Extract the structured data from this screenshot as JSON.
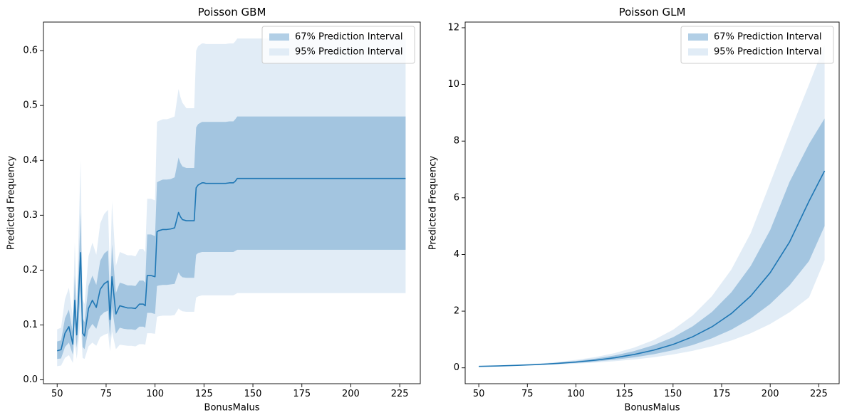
{
  "colors": {
    "line": "#1f77b4",
    "band67": "#a3c5e0",
    "band95": "#e1ecf6",
    "legend67": "#b2cfe6",
    "legend95": "#e1ecf6"
  },
  "chart_data": [
    {
      "type": "line",
      "title": "Poisson GBM",
      "xlabel": "BonusMalus",
      "ylabel": "Predicted Frequency",
      "xlim": [
        43,
        235.5
      ],
      "ylim": [
        -0.007,
        0.652
      ],
      "xticks": [
        50,
        75,
        100,
        125,
        150,
        175,
        200,
        225
      ],
      "xtick_labels": [
        "50",
        "75",
        "100",
        "125",
        "150",
        "175",
        "200",
        "225"
      ],
      "yticks": [
        0.0,
        0.1,
        0.2,
        0.3,
        0.4,
        0.5,
        0.6
      ],
      "ytick_labels": [
        "0.0",
        "0.1",
        "0.2",
        "0.3",
        "0.4",
        "0.5",
        "0.6"
      ],
      "legend_position": "upper right",
      "legend": [
        "67% Prediction Interval",
        "95% Prediction Interval"
      ],
      "x": [
        50,
        52,
        54,
        56,
        58,
        59,
        60,
        62,
        63,
        64,
        66,
        68,
        70,
        72,
        74,
        76,
        77,
        78,
        80,
        82,
        84,
        86,
        88,
        90,
        92,
        94,
        95,
        96,
        98,
        100,
        101,
        102,
        104,
        106,
        108,
        110,
        112,
        113,
        114,
        116,
        118,
        120,
        121,
        122,
        124,
        125,
        126,
        128,
        130,
        132,
        134,
        136,
        138,
        140,
        141,
        142,
        144,
        146,
        150,
        160,
        170,
        180,
        190,
        200,
        210,
        220,
        228
      ],
      "series": [
        {
          "role": "prediction",
          "values": [
            0.053,
            0.055,
            0.085,
            0.097,
            0.065,
            0.145,
            0.082,
            0.232,
            0.085,
            0.08,
            0.13,
            0.145,
            0.132,
            0.165,
            0.175,
            0.18,
            0.11,
            0.188,
            0.12,
            0.135,
            0.133,
            0.131,
            0.131,
            0.13,
            0.138,
            0.138,
            0.135,
            0.19,
            0.19,
            0.188,
            0.27,
            0.272,
            0.274,
            0.274,
            0.275,
            0.277,
            0.305,
            0.297,
            0.292,
            0.29,
            0.29,
            0.29,
            0.35,
            0.355,
            0.359,
            0.359,
            0.358,
            0.358,
            0.358,
            0.358,
            0.358,
            0.358,
            0.359,
            0.359,
            0.362,
            0.367,
            0.367,
            0.367,
            0.367,
            0.367,
            0.367,
            0.367,
            0.367,
            0.367,
            0.367,
            0.367,
            0.367
          ]
        },
        {
          "role": "pi67_lower",
          "values": [
            0.038,
            0.039,
            0.06,
            0.068,
            0.046,
            0.102,
            0.058,
            0.163,
            0.06,
            0.056,
            0.091,
            0.102,
            0.093,
            0.116,
            0.123,
            0.126,
            0.077,
            0.132,
            0.084,
            0.095,
            0.093,
            0.092,
            0.092,
            0.091,
            0.097,
            0.097,
            0.095,
            0.122,
            0.122,
            0.12,
            0.171,
            0.172,
            0.173,
            0.173,
            0.174,
            0.175,
            0.196,
            0.19,
            0.187,
            0.186,
            0.186,
            0.186,
            0.228,
            0.231,
            0.233,
            0.233,
            0.233,
            0.233,
            0.233,
            0.233,
            0.233,
            0.233,
            0.233,
            0.233,
            0.235,
            0.237,
            0.237,
            0.237,
            0.237,
            0.237,
            0.237,
            0.237,
            0.237,
            0.237,
            0.237,
            0.237,
            0.237
          ]
        },
        {
          "role": "pi67_upper",
          "values": [
            0.07,
            0.072,
            0.112,
            0.128,
            0.086,
            0.19,
            0.108,
            0.305,
            0.112,
            0.105,
            0.171,
            0.19,
            0.173,
            0.217,
            0.23,
            0.236,
            0.145,
            0.247,
            0.158,
            0.177,
            0.175,
            0.172,
            0.172,
            0.171,
            0.181,
            0.181,
            0.177,
            0.265,
            0.265,
            0.262,
            0.36,
            0.362,
            0.365,
            0.365,
            0.366,
            0.369,
            0.405,
            0.395,
            0.389,
            0.386,
            0.386,
            0.386,
            0.46,
            0.466,
            0.47,
            0.47,
            0.47,
            0.47,
            0.47,
            0.47,
            0.47,
            0.47,
            0.471,
            0.471,
            0.475,
            0.48,
            0.48,
            0.48,
            0.48,
            0.48,
            0.48,
            0.48,
            0.48,
            0.48,
            0.48,
            0.48,
            0.48
          ]
        },
        {
          "role": "pi95_lower",
          "values": [
            0.025,
            0.026,
            0.04,
            0.045,
            0.031,
            0.068,
            0.038,
            0.109,
            0.04,
            0.038,
            0.061,
            0.068,
            0.062,
            0.078,
            0.082,
            0.085,
            0.052,
            0.088,
            0.056,
            0.064,
            0.063,
            0.062,
            0.062,
            0.061,
            0.065,
            0.065,
            0.064,
            0.085,
            0.085,
            0.084,
            0.115,
            0.116,
            0.117,
            0.117,
            0.117,
            0.118,
            0.13,
            0.127,
            0.125,
            0.124,
            0.124,
            0.124,
            0.15,
            0.152,
            0.154,
            0.154,
            0.154,
            0.154,
            0.154,
            0.154,
            0.154,
            0.154,
            0.154,
            0.154,
            0.156,
            0.158,
            0.158,
            0.158,
            0.158,
            0.158,
            0.158,
            0.158,
            0.158,
            0.158,
            0.158,
            0.158,
            0.158
          ]
        },
        {
          "role": "pi95_upper",
          "values": [
            0.092,
            0.095,
            0.147,
            0.168,
            0.113,
            0.25,
            0.142,
            0.4,
            0.147,
            0.138,
            0.225,
            0.25,
            0.228,
            0.285,
            0.302,
            0.31,
            0.19,
            0.325,
            0.208,
            0.233,
            0.23,
            0.227,
            0.227,
            0.225,
            0.238,
            0.238,
            0.233,
            0.33,
            0.33,
            0.327,
            0.47,
            0.472,
            0.475,
            0.475,
            0.477,
            0.48,
            0.53,
            0.515,
            0.505,
            0.495,
            0.495,
            0.495,
            0.6,
            0.608,
            0.613,
            0.613,
            0.612,
            0.612,
            0.612,
            0.612,
            0.612,
            0.612,
            0.613,
            0.613,
            0.617,
            0.622,
            0.622,
            0.622,
            0.622,
            0.622,
            0.622,
            0.622,
            0.622,
            0.622,
            0.622,
            0.622,
            0.622
          ]
        }
      ]
    },
    {
      "type": "line",
      "title": "Poisson GLM",
      "xlabel": "BonusMalus",
      "ylabel": "Predicted Frequency",
      "xlim": [
        43,
        235.5
      ],
      "ylim": [
        -0.56,
        12.2
      ],
      "xticks": [
        50,
        75,
        100,
        125,
        150,
        175,
        200,
        225
      ],
      "xtick_labels": [
        "50",
        "75",
        "100",
        "125",
        "150",
        "175",
        "200",
        "225"
      ],
      "yticks": [
        0,
        2,
        4,
        6,
        8,
        10,
        12
      ],
      "ytick_labels": [
        "0",
        "2",
        "4",
        "6",
        "8",
        "10",
        "12"
      ],
      "legend_position": "upper right",
      "legend": [
        "67% Prediction Interval",
        "95% Prediction Interval"
      ],
      "x": [
        50,
        60,
        70,
        80,
        90,
        100,
        110,
        120,
        130,
        140,
        150,
        160,
        170,
        180,
        190,
        200,
        210,
        220,
        228
      ],
      "series": [
        {
          "role": "prediction",
          "values": [
            0.05,
            0.066,
            0.088,
            0.116,
            0.153,
            0.203,
            0.269,
            0.356,
            0.471,
            0.623,
            0.825,
            1.093,
            1.447,
            1.915,
            2.535,
            3.357,
            4.444,
            5.883,
            6.95
          ]
        },
        {
          "role": "pi67_lower",
          "values": [
            0.047,
            0.061,
            0.079,
            0.102,
            0.132,
            0.171,
            0.222,
            0.287,
            0.371,
            0.48,
            0.622,
            0.804,
            1.04,
            1.346,
            1.741,
            2.252,
            2.914,
            3.77,
            5.0
          ]
        },
        {
          "role": "pi67_upper",
          "values": [
            0.053,
            0.072,
            0.097,
            0.131,
            0.177,
            0.24,
            0.324,
            0.438,
            0.592,
            0.8,
            1.08,
            1.459,
            1.972,
            2.664,
            3.598,
            4.861,
            6.566,
            7.9,
            8.8
          ]
        },
        {
          "role": "pi95_lower",
          "values": [
            0.044,
            0.056,
            0.071,
            0.09,
            0.114,
            0.145,
            0.184,
            0.233,
            0.295,
            0.373,
            0.473,
            0.6,
            0.76,
            0.963,
            1.221,
            1.548,
            1.962,
            2.487,
            3.8
          ]
        },
        {
          "role": "pi95_upper",
          "values": [
            0.057,
            0.078,
            0.107,
            0.147,
            0.202,
            0.277,
            0.38,
            0.521,
            0.714,
            0.98,
            1.344,
            1.843,
            2.528,
            3.467,
            4.756,
            6.523,
            8.3,
            10.0,
            11.4
          ]
        }
      ]
    }
  ]
}
